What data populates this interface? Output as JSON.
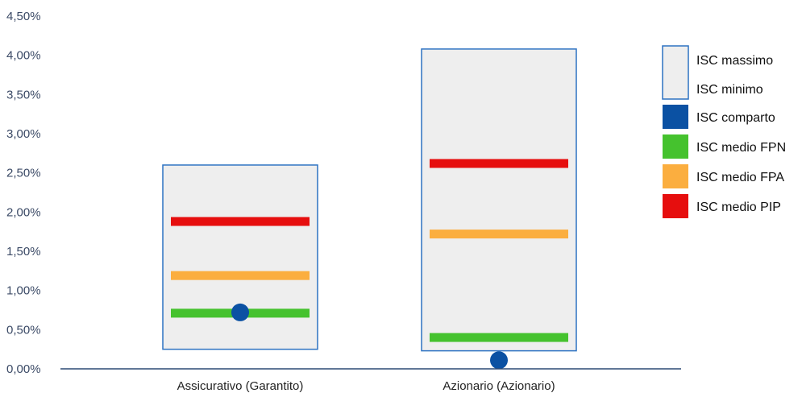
{
  "chart_data": {
    "type": "range-bar",
    "categories": [
      "Assicurativo (Garantito)",
      "Azionario (Azionario)"
    ],
    "range": {
      "min": [
        0.25,
        0.23
      ],
      "max": [
        2.6,
        4.08
      ]
    },
    "series": [
      {
        "name": "ISC comparto",
        "values": [
          0.72,
          0.11
        ],
        "color": "#0b51a3",
        "marker": "circle"
      },
      {
        "name": "ISC medio FPN",
        "values": [
          0.71,
          0.4
        ],
        "color": "#45c22e",
        "marker": "bar"
      },
      {
        "name": "ISC medio FPA",
        "values": [
          1.19,
          1.72
        ],
        "color": "#fbae3f",
        "marker": "bar"
      },
      {
        "name": "ISC medio PIP",
        "values": [
          1.88,
          2.62
        ],
        "color": "#e60e0e",
        "marker": "bar"
      }
    ],
    "yticks": [
      "0,00%",
      "0,50%",
      "1,00%",
      "1,50%",
      "2,00%",
      "2,50%",
      "3,00%",
      "3,50%",
      "4,00%",
      "4,50%"
    ],
    "ylim": [
      0,
      4.5
    ],
    "legend": {
      "range_max_label": "ISC massimo",
      "range_min_label": "ISC minimo",
      "position": "right"
    },
    "colors": {
      "range_fill": "#eeeeee",
      "range_border": "#2d72c2",
      "axis": "#2d4a75"
    }
  }
}
